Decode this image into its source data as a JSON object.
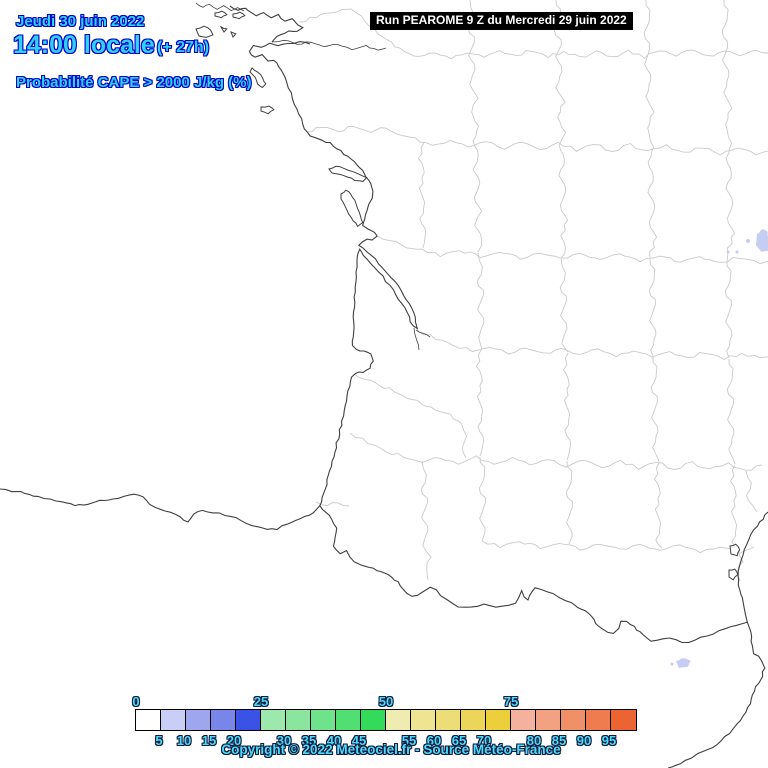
{
  "header": {
    "date_line": "Jeudi 30 juin 2022",
    "time_line": "14:00 locale",
    "run_offset": "(+ 27h)",
    "variable_line": "Probabilité CAPE > 2000 J/kg (%)"
  },
  "run_box": {
    "label": "Run PEAROME 9 Z du Mercredi 29 juin 2022"
  },
  "colorbar": {
    "unit": "%",
    "cells": [
      {
        "min": 0,
        "color": "#ffffff"
      },
      {
        "min": 5,
        "color": "#c9cef6"
      },
      {
        "min": 10,
        "color": "#9ea7ee"
      },
      {
        "min": 15,
        "color": "#7786e8"
      },
      {
        "min": 20,
        "color": "#3a53e6"
      },
      {
        "min": 25,
        "color": "#9ce8ad"
      },
      {
        "min": 30,
        "color": "#8be59f"
      },
      {
        "min": 35,
        "color": "#6fe28c"
      },
      {
        "min": 40,
        "color": "#51de73"
      },
      {
        "min": 45,
        "color": "#34da59"
      },
      {
        "min": 50,
        "color": "#f0ebb0"
      },
      {
        "min": 55,
        "color": "#eee492"
      },
      {
        "min": 60,
        "color": "#eddd76"
      },
      {
        "min": 65,
        "color": "#ecd659"
      },
      {
        "min": 70,
        "color": "#ebd03b"
      },
      {
        "min": 75,
        "color": "#f4b29e"
      },
      {
        "min": 80,
        "color": "#f2a283"
      },
      {
        "min": 85,
        "color": "#f09068"
      },
      {
        "min": 90,
        "color": "#ee7c4e"
      },
      {
        "min": 95,
        "color": "#eb6432"
      }
    ],
    "top_labels": [
      {
        "text": "0",
        "boundary": 0
      },
      {
        "text": "25",
        "boundary": 5
      },
      {
        "text": "50",
        "boundary": 10
      },
      {
        "text": "75",
        "boundary": 15
      }
    ],
    "bottom_labels": [
      {
        "text": "5",
        "boundary": 1
      },
      {
        "text": "10",
        "boundary": 2
      },
      {
        "text": "15",
        "boundary": 3
      },
      {
        "text": "20",
        "boundary": 4
      },
      {
        "text": "30",
        "boundary": 6
      },
      {
        "text": "35",
        "boundary": 7
      },
      {
        "text": "40",
        "boundary": 8
      },
      {
        "text": "45",
        "boundary": 9
      },
      {
        "text": "55",
        "boundary": 11
      },
      {
        "text": "60",
        "boundary": 12
      },
      {
        "text": "65",
        "boundary": 13
      },
      {
        "text": "70",
        "boundary": 14
      },
      {
        "text": "80",
        "boundary": 16
      },
      {
        "text": "85",
        "boundary": 17
      },
      {
        "text": "90",
        "boundary": 18
      },
      {
        "text": "95",
        "boundary": 19
      }
    ]
  },
  "footer": {
    "copyright": "Copyright © 2022 Meteociel.fr - Source Météo-France"
  },
  "colors": {
    "label_cyan": "#2ed1ff",
    "header_outline": "#0202c4",
    "scale_outline": "#131a3a",
    "dept_border": "#cacaca",
    "coast": "#3f3f3f",
    "lake": "#c5cdf2",
    "run_box_bg": "#000000",
    "run_box_text": "#ffffff"
  }
}
